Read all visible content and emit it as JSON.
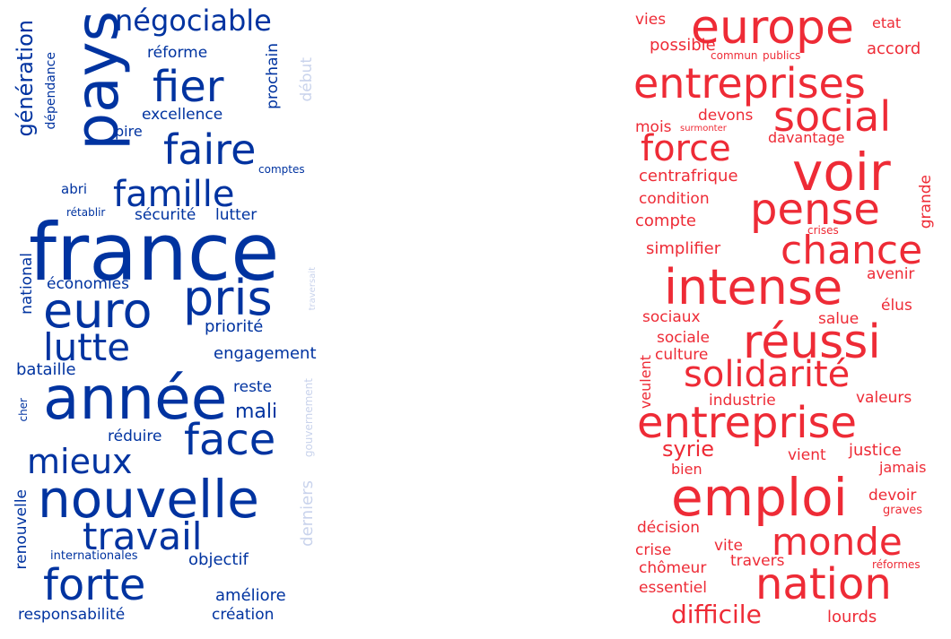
{
  "palette": {
    "blue": "#0033a0",
    "blue_faded": "#c9d3ec",
    "red": "#ee2b36",
    "red_faded": "#f7b3b8"
  },
  "left_cloud": {
    "color": "#0033a0",
    "words": [
      "france",
      "pays",
      "année",
      "nouvelle",
      "pris",
      "euro",
      "face",
      "forte",
      "fier",
      "faire",
      "famille",
      "lutte",
      "mieux",
      "travail",
      "négociable",
      "génération",
      "mali",
      "engagement",
      "priorité",
      "réforme",
      "excellence",
      "sécurité",
      "lutter",
      "économies",
      "bataille",
      "reste",
      "réduire",
      "objectif",
      "améliore",
      "création",
      "responsabilité",
      "renouvelle",
      "internationales",
      "national",
      "dépendance",
      "pire",
      "abri",
      "rétablir",
      "comptes",
      "prochain",
      "début",
      "cher",
      "derniers",
      "gouvernement",
      "traversait"
    ]
  },
  "right_cloud": {
    "color": "#ee2b36",
    "words": [
      "europe",
      "entreprises",
      "social",
      "voir",
      "force",
      "pense",
      "chance",
      "intense",
      "réussi",
      "solidarité",
      "entreprise",
      "emploi",
      "nation",
      "monde",
      "difficile",
      "vies",
      "etat",
      "possible",
      "accord",
      "commun",
      "publics",
      "mois",
      "devons",
      "surmonter",
      "davantage",
      "centrafrique",
      "condition",
      "grande",
      "compte",
      "crises",
      "simplifier",
      "avenir",
      "élus",
      "sociaux",
      "salue",
      "sociale",
      "culture",
      "veulent",
      "industrie",
      "valeurs",
      "syrie",
      "vient",
      "justice",
      "bien",
      "jamais",
      "devoir",
      "graves",
      "décision",
      "crise",
      "vite",
      "chômeur",
      "travers",
      "réformes",
      "essentiel",
      "lourds"
    ]
  }
}
